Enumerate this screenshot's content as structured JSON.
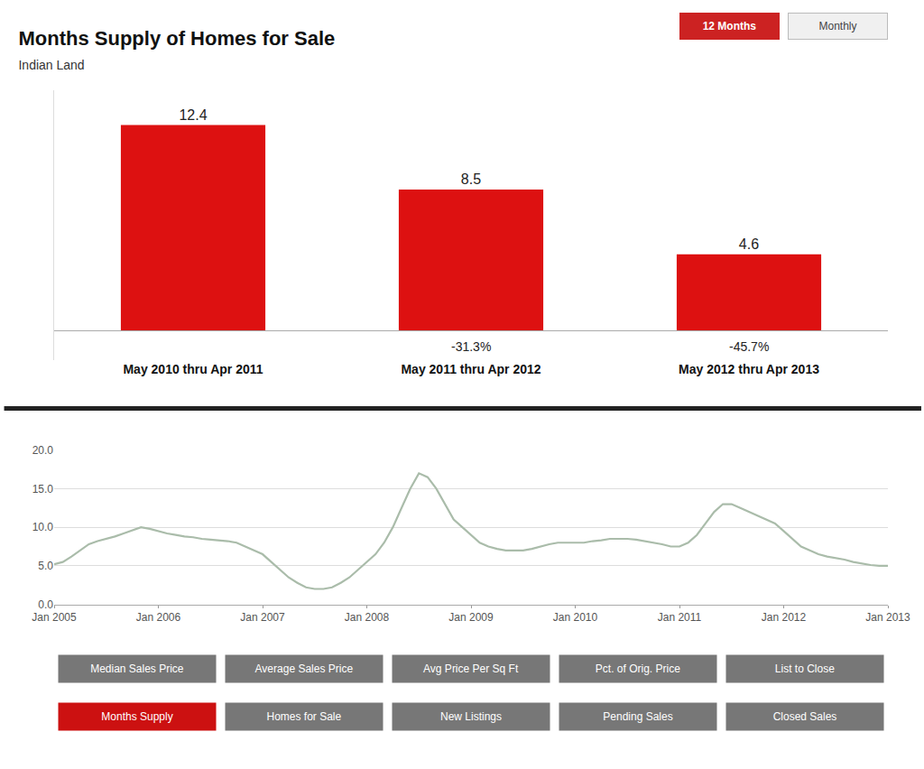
{
  "chart_data": [
    {
      "type": "bar",
      "title": "Months Supply of Homes for Sale",
      "subtitle": "Indian Land",
      "categories": [
        "May 2010 thru Apr 2011",
        "May 2011 thru Apr 2012",
        "May 2012 thru Apr 2013"
      ],
      "values": [
        12.4,
        8.5,
        4.6
      ],
      "color": "#dd1111",
      "data_labels": true,
      "tick_labels": "x",
      "ylim": [
        -1.8,
        14.5
      ],
      "annotations": [
        {
          "x": "May 2011 thru Apr 2012",
          "text": "-31.3%"
        },
        {
          "x": "May 2012 thru Apr 2013",
          "text": "-45.7%"
        },
        {
          "text": "12 Months",
          "color": "#cc2222"
        },
        {
          "text": "Monthly",
          "color": "#f0f0f0"
        }
      ]
    },
    {
      "type": "line",
      "categories": [
        "Jan 2005",
        null,
        null,
        null,
        null,
        null,
        null,
        null,
        null,
        null,
        null,
        null,
        "Jan 2006",
        null,
        null,
        null,
        null,
        null,
        null,
        null,
        null,
        null,
        null,
        null,
        "Jan 2007",
        null,
        null,
        null,
        null,
        null,
        null,
        null,
        null,
        null,
        null,
        null,
        "Jan 2008",
        null,
        null,
        null,
        null,
        null,
        null,
        null,
        null,
        null,
        null,
        null,
        "Jan 2009",
        null,
        null,
        null,
        null,
        null,
        null,
        null,
        null,
        null,
        null,
        null,
        "Jan 2010",
        null,
        null,
        null,
        null,
        null,
        null,
        null,
        null,
        null,
        null,
        null,
        "Jan 2011",
        null,
        null,
        null,
        null,
        null,
        null,
        null,
        null,
        null,
        null,
        null,
        "Jan 2012",
        null,
        null,
        null,
        null,
        null,
        null,
        null,
        null,
        null,
        null,
        null,
        "Jan 2013"
      ],
      "values": [
        5.2,
        5.5,
        6.2,
        7.0,
        7.8,
        8.2,
        8.5,
        8.8,
        9.2,
        9.6,
        10.0,
        9.8,
        9.5,
        9.2,
        9.0,
        8.8,
        8.7,
        8.5,
        8.4,
        8.3,
        8.2,
        8.0,
        7.5,
        7.0,
        6.5,
        5.5,
        4.5,
        3.5,
        2.8,
        2.2,
        2.0,
        2.0,
        2.2,
        2.8,
        3.5,
        4.5,
        5.5,
        6.5,
        8.0,
        10.0,
        12.5,
        15.0,
        17.0,
        16.5,
        15.0,
        13.0,
        11.0,
        10.0,
        9.0,
        8.0,
        7.5,
        7.2,
        7.0,
        7.0,
        7.0,
        7.2,
        7.5,
        7.8,
        8.0,
        8.0,
        8.0,
        8.0,
        8.2,
        8.3,
        8.5,
        8.5,
        8.5,
        8.4,
        8.2,
        8.0,
        7.8,
        7.5,
        7.5,
        8.0,
        9.0,
        10.5,
        12.0,
        13.0,
        13.0,
        12.5,
        12.0,
        11.5,
        11.0,
        10.5,
        9.5,
        8.5,
        7.5,
        7.0,
        6.5,
        6.2,
        6.0,
        5.8,
        5.5,
        5.3,
        5.1,
        5.0,
        5.0
      ],
      "color": "#aabcaa",
      "ylim": [
        0.0,
        20.0
      ],
      "yticks": [
        {
          "value": 0.0,
          "label": "0.0"
        },
        {
          "value": 5.0,
          "label": "5.0"
        },
        {
          "value": 10.0,
          "label": "10.0"
        },
        {
          "value": 15.0,
          "label": "15.0"
        },
        {
          "value": 20.0,
          "label": "20.0"
        }
      ],
      "grid": true,
      "annotations": [
        {
          "text": "Median Sales Price",
          "color": "#777777"
        },
        {
          "text": "Average Sales Price",
          "color": "#777777"
        },
        {
          "text": "Avg Price Per Sq Ft",
          "color": "#777777"
        },
        {
          "text": "Pct. of Orig. Price",
          "color": "#777777"
        },
        {
          "text": "List to Close",
          "color": "#777777"
        },
        {
          "text": "Months Supply",
          "color": "#cc1111"
        },
        {
          "text": "Homes for Sale",
          "color": "#777777"
        },
        {
          "text": "New Listings",
          "color": "#777777"
        },
        {
          "text": "Pending Sales",
          "color": "#777777"
        },
        {
          "text": "Closed Sales",
          "color": "#777777"
        }
      ]
    }
  ]
}
